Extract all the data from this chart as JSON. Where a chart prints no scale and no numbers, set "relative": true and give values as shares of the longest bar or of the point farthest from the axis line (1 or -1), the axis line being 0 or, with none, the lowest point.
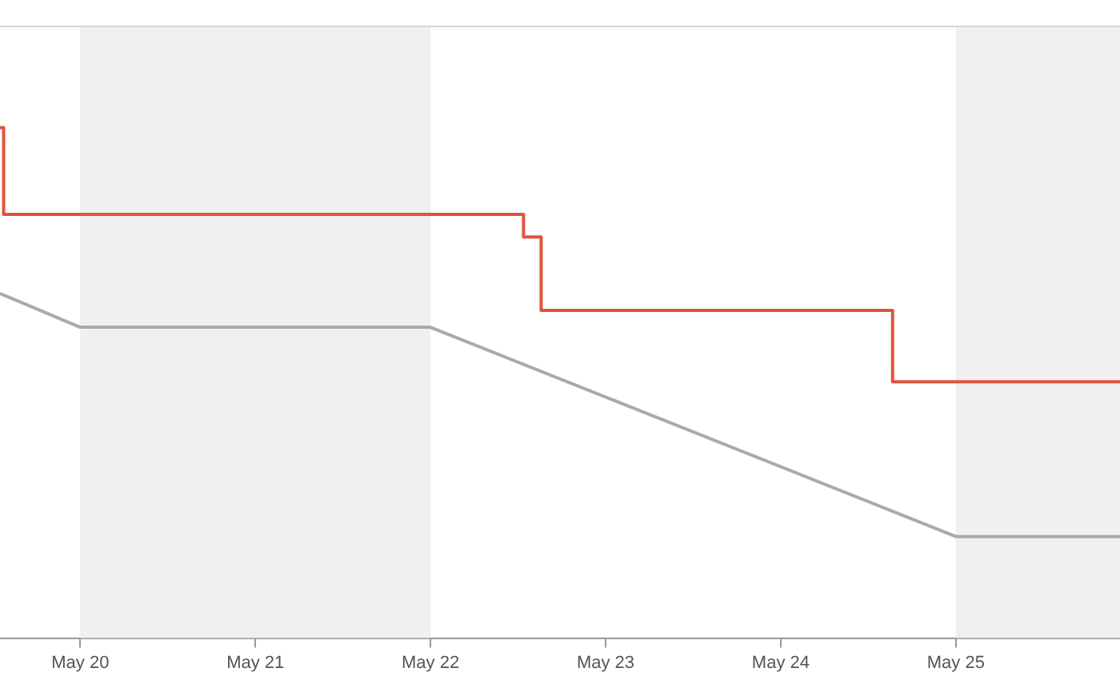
{
  "chart_data": {
    "type": "line",
    "relative": true,
    "xlim": [
      "--05-19T13:00",
      "--05-25T22:30"
    ],
    "xticks": [
      {
        "value": "--05-20",
        "label": "May 20"
      },
      {
        "value": "--05-21",
        "label": "May 21"
      },
      {
        "value": "--05-22",
        "label": "May 22"
      },
      {
        "value": "--05-23",
        "label": "May 23"
      },
      {
        "value": "--05-24",
        "label": "May 24"
      },
      {
        "value": "--05-25",
        "label": "May 25"
      }
    ],
    "series": [
      {
        "type": "step",
        "color": "#e0553d",
        "x": [
          "--05-19T13:00",
          "--05-19T13:30",
          "--05-22T12:45",
          "--05-22T15:10",
          "--05-24T15:20",
          "--05-25T22:30"
        ],
        "values": [
          1,
          0.83,
          0.786,
          0.642,
          0.502,
          0.502
        ]
      },
      {
        "color": "#aaaaaa",
        "x": [
          "--05-19T13:00",
          "--05-20",
          "--05-22",
          "--05-25",
          "--05-25T22:30"
        ],
        "values": [
          0.675,
          0.609,
          0.609,
          0.199,
          0.199
        ]
      }
    ],
    "bands": [
      {
        "axis": "x",
        "from": "--05-20",
        "to": "--05-22",
        "color": "#f0f0f0"
      },
      {
        "axis": "x",
        "from": "--05-25",
        "to": "--05-25T22:30",
        "color": "#f0f0f0"
      }
    ],
    "grid": false,
    "legend": false,
    "tick_labels": "x",
    "marker": "none"
  }
}
